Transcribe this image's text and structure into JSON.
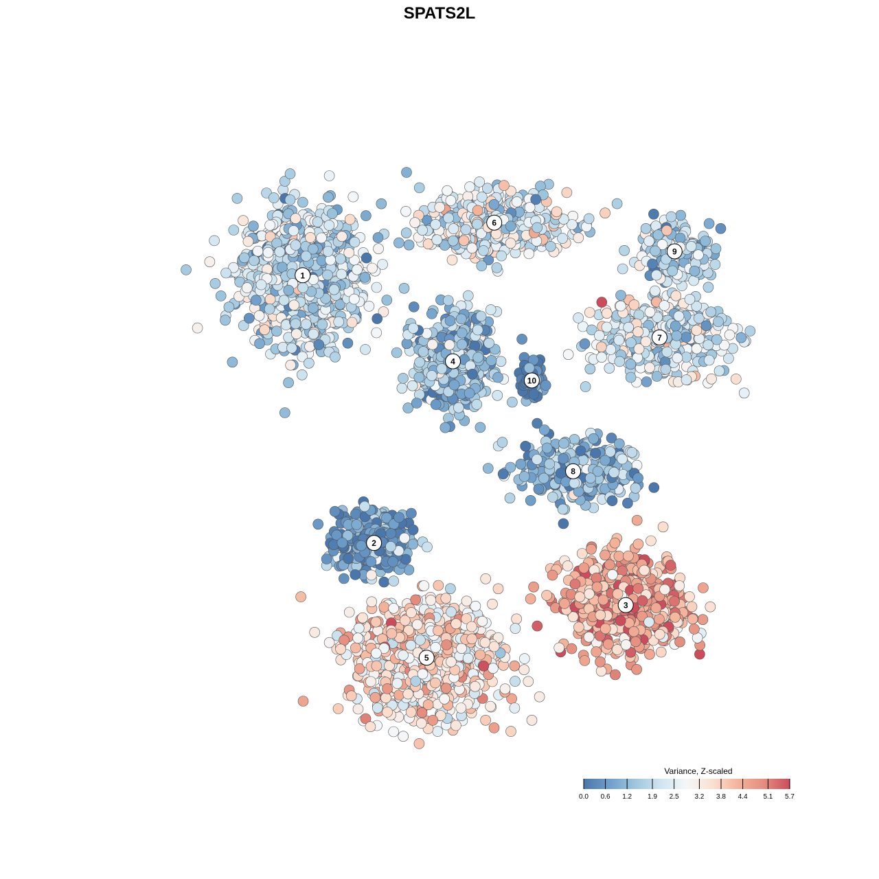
{
  "chart_data": {
    "type": "scatter",
    "title": "SPATS2L",
    "xlabel": "",
    "ylabel": "",
    "axes_visible": false,
    "grid": false,
    "marker": "circle with dark outline",
    "colorbar": {
      "title": "Variance, Z-scaled",
      "placement": "bottom-right",
      "range": [
        0.0,
        5.7
      ],
      "tick_labels": [
        "0.0",
        "0.6",
        "1.2",
        "1.9",
        "2.5",
        "3.2",
        "3.8",
        "4.4",
        "5.1",
        "5.7"
      ],
      "tick_values": [
        0.0,
        0.6,
        1.2,
        1.9,
        2.5,
        3.2,
        3.8,
        4.4,
        5.1,
        5.7
      ],
      "colors": [
        "#4a77ab",
        "#6f9fcb",
        "#9fc6de",
        "#d0e5f0",
        "#f4f7f9",
        "#fbe0d1",
        "#f4b39a",
        "#e48d7e",
        "#cc4c5c"
      ]
    },
    "clusters": [
      {
        "label": "1",
        "x": -1.8,
        "y": 1.95,
        "value": 1.9
      },
      {
        "label": "2",
        "x": -0.85,
        "y": -0.85,
        "value": 0.6
      },
      {
        "label": "3",
        "x": 2.5,
        "y": -1.5,
        "value": 4.4
      },
      {
        "label": "4",
        "x": 0.2,
        "y": 1.05,
        "value": 1.3
      },
      {
        "label": "5",
        "x": -0.15,
        "y": -2.05,
        "value": 3.4
      },
      {
        "label": "6",
        "x": 0.75,
        "y": 2.5,
        "value": 2.4
      },
      {
        "label": "7",
        "x": 2.95,
        "y": 1.3,
        "value": 2.3
      },
      {
        "label": "8",
        "x": 1.8,
        "y": -0.1,
        "value": 1.2
      },
      {
        "label": "9",
        "x": 3.15,
        "y": 2.2,
        "value": 1.8
      },
      {
        "label": "10",
        "x": 1.25,
        "y": 0.85,
        "value": 0.2
      }
    ],
    "xlim": [
      -4.0,
      4.5
    ],
    "ylim": [
      -3.0,
      3.5
    ]
  }
}
